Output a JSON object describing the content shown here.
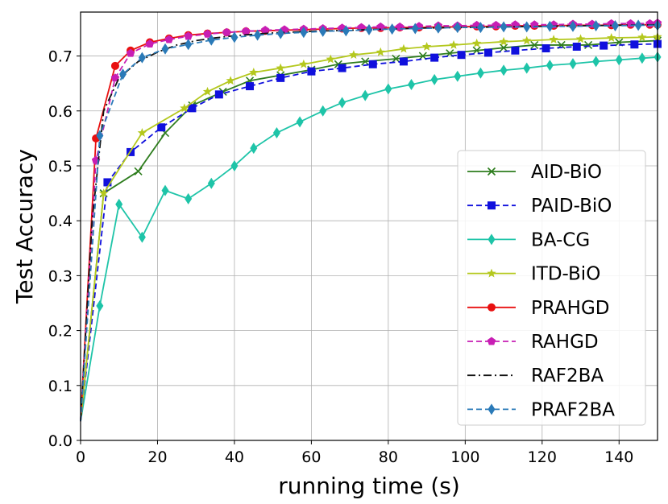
{
  "chart_data": {
    "type": "line",
    "title": "",
    "xlabel": "running time  (s)",
    "ylabel": "Test Accuracy",
    "xlim": [
      0,
      150
    ],
    "ylim": [
      0,
      0.78
    ],
    "xticks": [
      0,
      20,
      40,
      60,
      80,
      100,
      120,
      140
    ],
    "yticks": [
      0.0,
      0.1,
      0.2,
      0.3,
      0.4,
      0.5,
      0.6,
      0.7
    ],
    "ytick_labels": [
      "0.0",
      "0.1",
      "0.2",
      "0.3",
      "0.4",
      "0.5",
      "0.6",
      "0.7"
    ],
    "grid": true,
    "legend_position": "lower-right",
    "series": [
      {
        "name": "AID-BiO",
        "color": "#2e7d1e",
        "marker": "x",
        "linestyle": "solid",
        "x": [
          0,
          6,
          15,
          22,
          29,
          37,
          44,
          52,
          60,
          67,
          74,
          82,
          89,
          96,
          103,
          110,
          118,
          125,
          132,
          140,
          150
        ],
        "y": [
          0.035,
          0.45,
          0.49,
          0.56,
          0.61,
          0.635,
          0.655,
          0.665,
          0.675,
          0.685,
          0.69,
          0.695,
          0.7,
          0.705,
          0.71,
          0.715,
          0.72,
          0.72,
          0.72,
          0.725,
          0.728
        ]
      },
      {
        "name": "PAID-BiO",
        "color": "#1010dd",
        "marker": "square",
        "linestyle": "dashed",
        "x": [
          0,
          7,
          13,
          21,
          29,
          36,
          44,
          52,
          60,
          68,
          76,
          84,
          92,
          99,
          106,
          113,
          121,
          129,
          136,
          144,
          150
        ],
        "y": [
          0.035,
          0.47,
          0.525,
          0.57,
          0.605,
          0.63,
          0.645,
          0.66,
          0.672,
          0.678,
          0.685,
          0.69,
          0.697,
          0.702,
          0.706,
          0.71,
          0.714,
          0.717,
          0.719,
          0.721,
          0.722
        ]
      },
      {
        "name": "BA-CG",
        "color": "#1ec4a8",
        "marker": "diamond",
        "linestyle": "solid",
        "x": [
          0,
          5,
          10,
          16,
          22,
          28,
          34,
          40,
          45,
          51,
          57,
          63,
          68,
          74,
          80,
          86,
          92,
          98,
          104,
          110,
          116,
          122,
          128,
          134,
          140,
          146,
          150
        ],
        "y": [
          0.035,
          0.245,
          0.43,
          0.37,
          0.455,
          0.44,
          0.468,
          0.5,
          0.532,
          0.56,
          0.58,
          0.6,
          0.615,
          0.628,
          0.64,
          0.648,
          0.657,
          0.663,
          0.669,
          0.674,
          0.678,
          0.683,
          0.686,
          0.69,
          0.693,
          0.696,
          0.698
        ]
      },
      {
        "name": "ITD-BiO",
        "color": "#b4c81e",
        "marker": "star",
        "linestyle": "solid",
        "x": [
          0,
          6,
          16,
          27,
          33,
          39,
          45,
          52,
          58,
          65,
          71,
          78,
          84,
          90,
          97,
          103,
          110,
          116,
          123,
          130,
          138,
          146,
          150
        ],
        "y": [
          0.035,
          0.45,
          0.56,
          0.605,
          0.635,
          0.655,
          0.67,
          0.678,
          0.685,
          0.694,
          0.702,
          0.707,
          0.713,
          0.717,
          0.72,
          0.723,
          0.726,
          0.728,
          0.73,
          0.731,
          0.733,
          0.734,
          0.735
        ]
      },
      {
        "name": "PRAHGD",
        "color": "#e81010",
        "marker": "circle",
        "linestyle": "solid",
        "x": [
          0,
          4,
          9,
          13,
          18,
          23,
          28,
          33,
          38,
          43,
          48,
          53,
          58,
          63,
          68,
          73,
          78,
          83,
          88,
          93,
          98,
          103,
          108,
          113,
          118,
          123,
          128,
          133,
          138,
          143,
          148,
          150
        ],
        "y": [
          0.035,
          0.55,
          0.682,
          0.71,
          0.725,
          0.732,
          0.738,
          0.741,
          0.743,
          0.745,
          0.746,
          0.747,
          0.748,
          0.749,
          0.75,
          0.751,
          0.751,
          0.752,
          0.752,
          0.753,
          0.753,
          0.754,
          0.754,
          0.755,
          0.755,
          0.755,
          0.756,
          0.756,
          0.756,
          0.757,
          0.757,
          0.757
        ]
      },
      {
        "name": "RAHGD",
        "color": "#c81eb4",
        "marker": "pentagon",
        "linestyle": "dashed",
        "x": [
          0,
          4,
          9,
          13,
          18,
          23,
          28,
          33,
          38,
          43,
          48,
          53,
          58,
          63,
          68,
          73,
          78,
          83,
          88,
          93,
          98,
          103,
          108,
          113,
          118,
          123,
          128,
          133,
          138,
          143,
          148,
          150
        ],
        "y": [
          0.035,
          0.51,
          0.66,
          0.705,
          0.722,
          0.73,
          0.736,
          0.74,
          0.743,
          0.745,
          0.747,
          0.748,
          0.749,
          0.75,
          0.751,
          0.752,
          0.753,
          0.753,
          0.754,
          0.755,
          0.755,
          0.756,
          0.756,
          0.757,
          0.757,
          0.757,
          0.758,
          0.758,
          0.759,
          0.759,
          0.759,
          0.76
        ]
      },
      {
        "name": "RAF2BA",
        "color": "#111111",
        "marker": "none",
        "linestyle": "dashdot",
        "x": [
          0,
          3,
          6,
          10,
          15,
          20,
          25,
          30,
          35,
          40,
          50,
          60,
          70,
          80,
          90,
          100,
          110,
          120,
          130,
          140,
          150
        ],
        "y": [
          0.035,
          0.4,
          0.6,
          0.66,
          0.69,
          0.707,
          0.72,
          0.728,
          0.733,
          0.737,
          0.742,
          0.745,
          0.747,
          0.749,
          0.751,
          0.752,
          0.753,
          0.754,
          0.755,
          0.756,
          0.757
        ]
      },
      {
        "name": "PRAF2BA",
        "color": "#2a7ab8",
        "marker": "diamond",
        "linestyle": "dashed",
        "x": [
          0,
          5,
          11,
          16,
          22,
          28,
          34,
          40,
          46,
          52,
          58,
          63,
          69,
          75,
          81,
          87,
          93,
          98,
          104,
          110,
          116,
          122,
          128,
          134,
          139,
          145,
          150
        ],
        "y": [
          0.035,
          0.555,
          0.667,
          0.697,
          0.713,
          0.721,
          0.729,
          0.734,
          0.738,
          0.741,
          0.743,
          0.745,
          0.746,
          0.748,
          0.749,
          0.75,
          0.751,
          0.752,
          0.752,
          0.753,
          0.753,
          0.754,
          0.754,
          0.755,
          0.755,
          0.756,
          0.756
        ]
      }
    ]
  }
}
